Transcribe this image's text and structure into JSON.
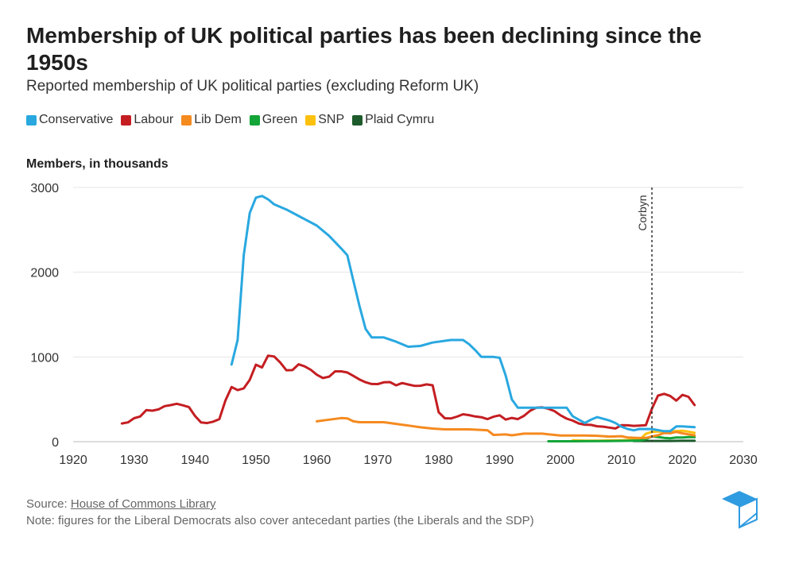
{
  "title": "Membership of UK political parties has been declining since the 1950s",
  "subtitle": "Reported membership of UK political parties (excluding Reform UK)",
  "source_label": "Source:",
  "source_link": "House of Commons Library",
  "note": "Note: figures for the Liberal Democrats also cover antecedant parties (the Liberals and the SDP)",
  "chart_data": {
    "type": "line",
    "title": "",
    "xlabel": "",
    "ylabel": "Members, in thousands",
    "xlim": [
      1920,
      2030
    ],
    "ylim": [
      0,
      3000
    ],
    "x_ticks": [
      1920,
      1930,
      1940,
      1950,
      1960,
      1970,
      1980,
      1990,
      2000,
      2010,
      2020,
      2030
    ],
    "y_ticks": [
      0,
      1000,
      2000,
      3000
    ],
    "grid": "horizontal",
    "legend": "top-left",
    "annotations": [
      {
        "x": 2015,
        "label": "Corbyn",
        "style": "dashed-vertical"
      }
    ],
    "series": [
      {
        "name": "Conservative",
        "color": "#29a8e0",
        "points": [
          [
            1946,
            910
          ],
          [
            1947,
            1200
          ],
          [
            1948,
            2200
          ],
          [
            1949,
            2700
          ],
          [
            1950,
            2880
          ],
          [
            1951,
            2900
          ],
          [
            1952,
            2860
          ],
          [
            1953,
            2800
          ],
          [
            1955,
            2740
          ],
          [
            1960,
            2550
          ],
          [
            1962,
            2430
          ],
          [
            1964,
            2280
          ],
          [
            1965,
            2200
          ],
          [
            1966,
            1900
          ],
          [
            1967,
            1600
          ],
          [
            1968,
            1330
          ],
          [
            1969,
            1230
          ],
          [
            1971,
            1230
          ],
          [
            1973,
            1180
          ],
          [
            1975,
            1120
          ],
          [
            1977,
            1130
          ],
          [
            1979,
            1170
          ],
          [
            1982,
            1200
          ],
          [
            1984,
            1200
          ],
          [
            1985,
            1150
          ],
          [
            1986,
            1080
          ],
          [
            1987,
            1000
          ],
          [
            1989,
            1000
          ],
          [
            1990,
            990
          ],
          [
            1991,
            780
          ],
          [
            1992,
            500
          ],
          [
            1993,
            400
          ],
          [
            1998,
            400
          ],
          [
            2001,
            400
          ],
          [
            2002,
            300
          ],
          [
            2003,
            260
          ],
          [
            2004,
            220
          ],
          [
            2005,
            260
          ],
          [
            2006,
            290
          ],
          [
            2008,
            250
          ],
          [
            2009,
            220
          ],
          [
            2010,
            177
          ],
          [
            2011,
            150
          ],
          [
            2012,
            134
          ],
          [
            2013,
            150
          ],
          [
            2015,
            149
          ],
          [
            2017,
            124
          ],
          [
            2018,
            124
          ],
          [
            2019,
            180
          ],
          [
            2020,
            180
          ],
          [
            2022,
            172
          ]
        ]
      },
      {
        "name": "Labour",
        "color": "#c41e22",
        "points": [
          [
            1928,
            215
          ],
          [
            1929,
            228
          ],
          [
            1930,
            277
          ],
          [
            1931,
            297
          ],
          [
            1932,
            372
          ],
          [
            1933,
            366
          ],
          [
            1934,
            381
          ],
          [
            1935,
            419
          ],
          [
            1936,
            431
          ],
          [
            1937,
            447
          ],
          [
            1938,
            429
          ],
          [
            1939,
            409
          ],
          [
            1940,
            304
          ],
          [
            1941,
            227
          ],
          [
            1942,
            219
          ],
          [
            1943,
            236
          ],
          [
            1944,
            266
          ],
          [
            1945,
            487
          ],
          [
            1946,
            645
          ],
          [
            1947,
            608
          ],
          [
            1948,
            629
          ],
          [
            1949,
            730
          ],
          [
            1950,
            908
          ],
          [
            1951,
            876
          ],
          [
            1952,
            1015
          ],
          [
            1953,
            1005
          ],
          [
            1954,
            934
          ],
          [
            1955,
            843
          ],
          [
            1956,
            845
          ],
          [
            1957,
            913
          ],
          [
            1958,
            889
          ],
          [
            1959,
            848
          ],
          [
            1960,
            790
          ],
          [
            1961,
            751
          ],
          [
            1962,
            767
          ],
          [
            1963,
            830
          ],
          [
            1964,
            830
          ],
          [
            1965,
            817
          ],
          [
            1966,
            776
          ],
          [
            1967,
            734
          ],
          [
            1968,
            701
          ],
          [
            1969,
            681
          ],
          [
            1970,
            680
          ],
          [
            1971,
            700
          ],
          [
            1972,
            703
          ],
          [
            1973,
            665
          ],
          [
            1974,
            692
          ],
          [
            1975,
            675
          ],
          [
            1976,
            659
          ],
          [
            1977,
            660
          ],
          [
            1978,
            676
          ],
          [
            1979,
            666
          ],
          [
            1980,
            348
          ],
          [
            1981,
            277
          ],
          [
            1982,
            274
          ],
          [
            1983,
            295
          ],
          [
            1984,
            323
          ],
          [
            1985,
            313
          ],
          [
            1986,
            297
          ],
          [
            1987,
            289
          ],
          [
            1988,
            266
          ],
          [
            1989,
            294
          ],
          [
            1990,
            311
          ],
          [
            1991,
            261
          ],
          [
            1992,
            280
          ],
          [
            1993,
            266
          ],
          [
            1994,
            305
          ],
          [
            1995,
            365
          ],
          [
            1996,
            400
          ],
          [
            1997,
            405
          ],
          [
            1998,
            388
          ],
          [
            1999,
            361
          ],
          [
            2000,
            311
          ],
          [
            2001,
            272
          ],
          [
            2002,
            248
          ],
          [
            2003,
            215
          ],
          [
            2004,
            201
          ],
          [
            2005,
            198
          ],
          [
            2006,
            182
          ],
          [
            2007,
            177
          ],
          [
            2008,
            166
          ],
          [
            2009,
            156
          ],
          [
            2010,
            194
          ],
          [
            2011,
            193
          ],
          [
            2012,
            187
          ],
          [
            2013,
            190
          ],
          [
            2014,
            194
          ],
          [
            2015,
            388
          ],
          [
            2016,
            544
          ],
          [
            2017,
            564
          ],
          [
            2018,
            540
          ],
          [
            2019,
            485
          ],
          [
            2020,
            552
          ],
          [
            2021,
            530
          ],
          [
            2022,
            432
          ]
        ]
      },
      {
        "name": "Lib Dem",
        "color": "#f58a1f",
        "points": [
          [
            1960,
            240
          ],
          [
            1962,
            260
          ],
          [
            1964,
            278
          ],
          [
            1965,
            275
          ],
          [
            1966,
            240
          ],
          [
            1967,
            230
          ],
          [
            1971,
            230
          ],
          [
            1973,
            210
          ],
          [
            1975,
            190
          ],
          [
            1977,
            170
          ],
          [
            1979,
            155
          ],
          [
            1981,
            145
          ],
          [
            1985,
            145
          ],
          [
            1988,
            135
          ],
          [
            1989,
            80
          ],
          [
            1991,
            85
          ],
          [
            1992,
            75
          ],
          [
            1994,
            95
          ],
          [
            1997,
            95
          ],
          [
            1998,
            86
          ],
          [
            2000,
            73
          ],
          [
            2004,
            73
          ],
          [
            2006,
            69
          ],
          [
            2008,
            60
          ],
          [
            2010,
            65
          ],
          [
            2011,
            50
          ],
          [
            2013,
            43
          ],
          [
            2014,
            44
          ],
          [
            2015,
            61
          ],
          [
            2016,
            76
          ],
          [
            2017,
            102
          ],
          [
            2018,
            99
          ],
          [
            2019,
            115
          ],
          [
            2020,
            98
          ],
          [
            2022,
            74
          ]
        ]
      },
      {
        "name": "Green",
        "color": "#13a538",
        "points": [
          [
            1998,
            5
          ],
          [
            2002,
            5
          ],
          [
            2004,
            6
          ],
          [
            2007,
            7
          ],
          [
            2010,
            9
          ],
          [
            2012,
            13
          ],
          [
            2013,
            14
          ],
          [
            2014,
            30
          ],
          [
            2015,
            62
          ],
          [
            2016,
            55
          ],
          [
            2017,
            45
          ],
          [
            2018,
            40
          ],
          [
            2019,
            49
          ],
          [
            2020,
            50
          ],
          [
            2021,
            54
          ],
          [
            2022,
            53
          ]
        ]
      },
      {
        "name": "SNP",
        "color": "#fcc10f",
        "points": [
          [
            2002,
            16
          ],
          [
            2004,
            11
          ],
          [
            2006,
            12
          ],
          [
            2008,
            15
          ],
          [
            2010,
            16
          ],
          [
            2012,
            20
          ],
          [
            2013,
            25
          ],
          [
            2014,
            93
          ],
          [
            2015,
            114
          ],
          [
            2016,
            120
          ],
          [
            2017,
            118
          ],
          [
            2018,
            125
          ],
          [
            2019,
            126
          ],
          [
            2020,
            129
          ],
          [
            2021,
            119
          ],
          [
            2022,
            104
          ]
        ]
      },
      {
        "name": "Plaid Cymru",
        "color": "#1e5b2c",
        "points": [
          [
            2012,
            8
          ],
          [
            2014,
            8
          ],
          [
            2016,
            8
          ],
          [
            2018,
            8
          ],
          [
            2020,
            10
          ],
          [
            2022,
            10
          ]
        ]
      }
    ]
  }
}
